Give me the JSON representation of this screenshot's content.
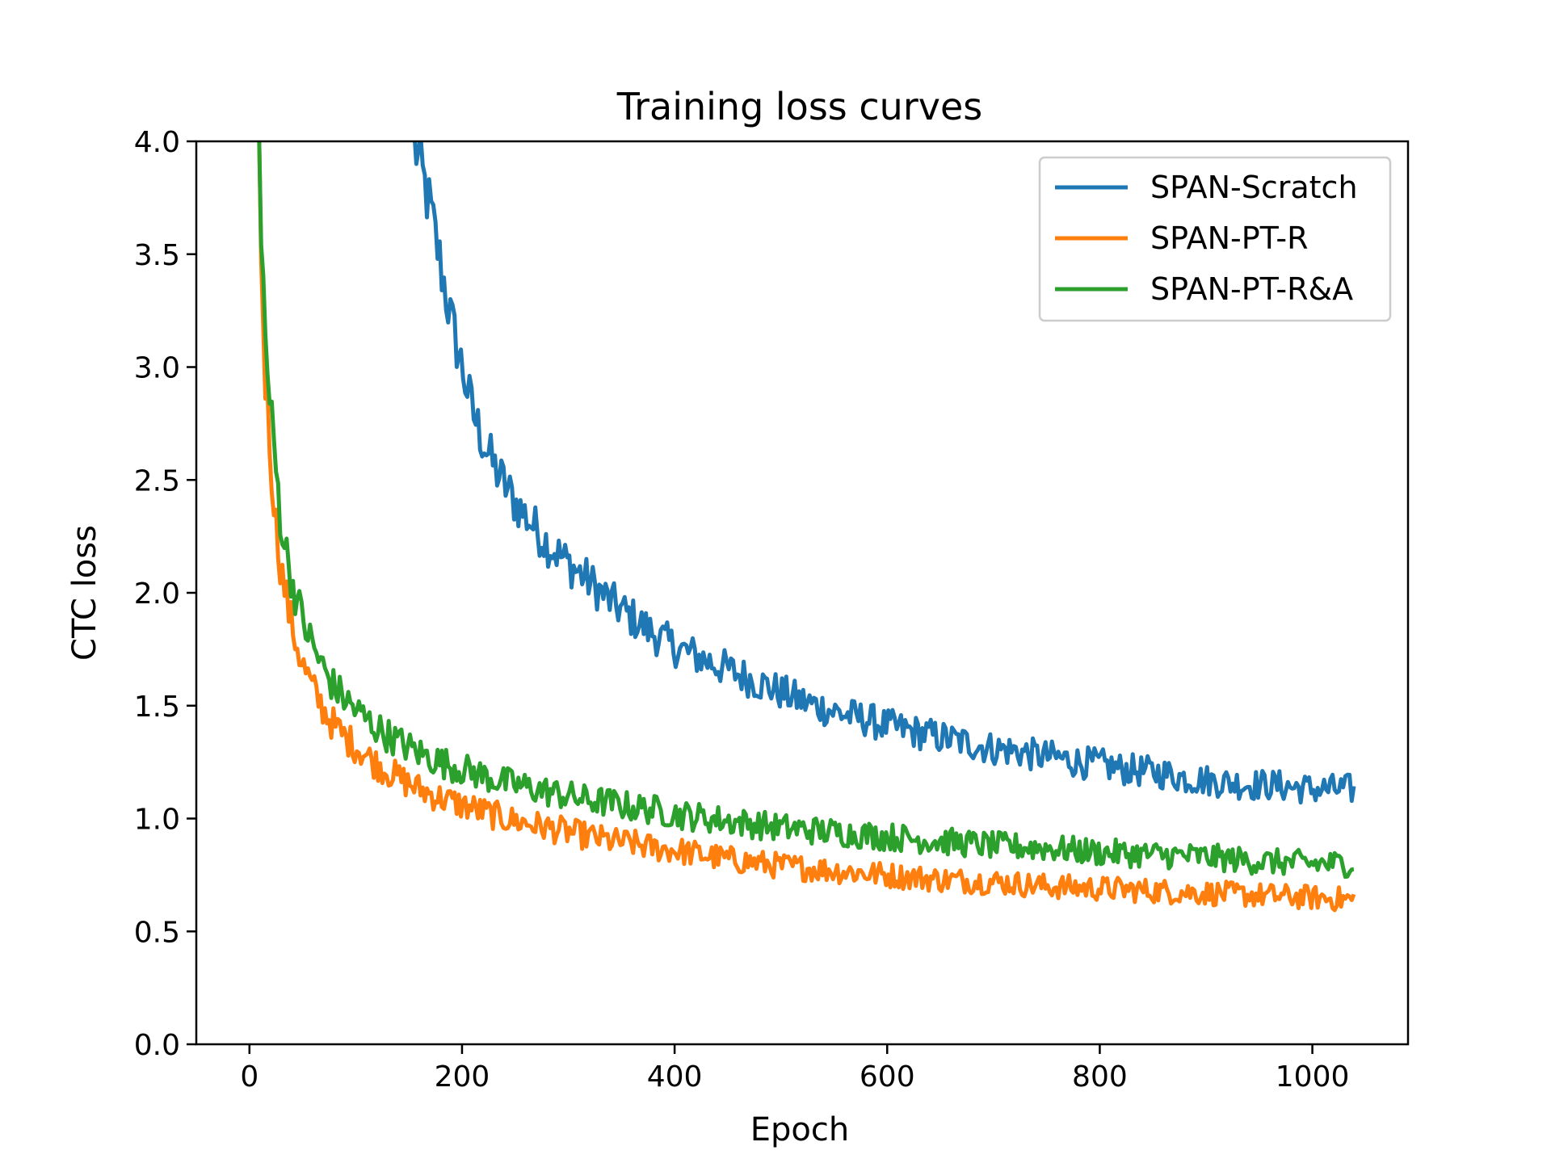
{
  "chart_data": {
    "type": "line",
    "title": "Training loss curves",
    "xlabel": "Epoch",
    "ylabel": "CTC loss",
    "xlim": [
      -50,
      1090
    ],
    "ylim": [
      0,
      4
    ],
    "xticks": [
      0,
      200,
      400,
      600,
      800,
      1000
    ],
    "yticks": [
      0,
      0.5,
      1,
      1.5,
      2,
      2.5,
      3,
      3.5,
      4
    ],
    "xtick_labels": [
      "0",
      "200",
      "400",
      "600",
      "800",
      "1000"
    ],
    "ytick_labels": [
      "0.0",
      "0.5",
      "1.0",
      "1.5",
      "2.0",
      "2.5",
      "3.0",
      "3.5",
      "4.0"
    ],
    "grid": false,
    "legend_position": "top-right",
    "series": [
      {
        "name": "SPAN-Scratch",
        "color": "#1f77b4",
        "x": [
          155,
          160,
          170,
          180,
          190,
          200,
          210,
          220,
          230,
          240,
          250,
          260,
          270,
          280,
          300,
          320,
          340,
          360,
          380,
          400,
          420,
          440,
          460,
          480,
          500,
          520,
          540,
          560,
          580,
          600,
          620,
          640,
          660,
          680,
          700,
          720,
          740,
          760,
          780,
          800,
          820,
          840,
          860,
          880,
          900,
          920,
          940,
          960,
          980,
          1000,
          1020,
          1040
        ],
        "y": [
          4.0,
          3.9,
          3.7,
          3.45,
          3.2,
          3.0,
          2.8,
          2.67,
          2.56,
          2.48,
          2.4,
          2.34,
          2.28,
          2.22,
          2.13,
          2.05,
          1.96,
          1.89,
          1.82,
          1.76,
          1.72,
          1.68,
          1.64,
          1.6,
          1.56,
          1.52,
          1.49,
          1.46,
          1.44,
          1.41,
          1.39,
          1.37,
          1.35,
          1.33,
          1.31,
          1.3,
          1.28,
          1.27,
          1.25,
          1.24,
          1.22,
          1.21,
          1.2,
          1.18,
          1.17,
          1.16,
          1.15,
          1.15,
          1.14,
          1.13,
          1.13,
          1.13
        ]
      },
      {
        "name": "SPAN-PT-R",
        "color": "#ff7f0e",
        "x": [
          9,
          12,
          15,
          20,
          25,
          30,
          40,
          50,
          60,
          70,
          80,
          90,
          100,
          120,
          140,
          160,
          180,
          200,
          220,
          240,
          260,
          280,
          300,
          320,
          340,
          360,
          380,
          400,
          450,
          500,
          550,
          600,
          650,
          700,
          750,
          800,
          850,
          900,
          950,
          1000,
          1040
        ],
        "y": [
          4.0,
          3.3,
          2.95,
          2.6,
          2.3,
          2.1,
          1.85,
          1.68,
          1.57,
          1.48,
          1.41,
          1.36,
          1.32,
          1.24,
          1.18,
          1.13,
          1.09,
          1.06,
          1.03,
          1.0,
          0.98,
          0.96,
          0.94,
          0.92,
          0.9,
          0.89,
          0.87,
          0.86,
          0.82,
          0.79,
          0.77,
          0.75,
          0.73,
          0.72,
          0.7,
          0.69,
          0.68,
          0.67,
          0.66,
          0.65,
          0.64
        ]
      },
      {
        "name": "SPAN-PT-R&A",
        "color": "#2ca02c",
        "x": [
          9,
          12,
          15,
          20,
          25,
          30,
          40,
          50,
          60,
          70,
          80,
          90,
          100,
          120,
          140,
          160,
          180,
          200,
          220,
          240,
          260,
          280,
          300,
          320,
          340,
          360,
          380,
          400,
          450,
          500,
          550,
          600,
          650,
          700,
          750,
          800,
          850,
          900,
          950,
          1000,
          1040
        ],
        "y": [
          4.0,
          3.5,
          3.1,
          2.8,
          2.55,
          2.3,
          2.05,
          1.88,
          1.76,
          1.66,
          1.58,
          1.53,
          1.48,
          1.4,
          1.34,
          1.29,
          1.25,
          1.22,
          1.19,
          1.16,
          1.14,
          1.12,
          1.1,
          1.08,
          1.07,
          1.05,
          1.04,
          1.02,
          0.99,
          0.96,
          0.94,
          0.92,
          0.9,
          0.88,
          0.87,
          0.85,
          0.84,
          0.83,
          0.81,
          0.8,
          0.8
        ]
      }
    ]
  }
}
